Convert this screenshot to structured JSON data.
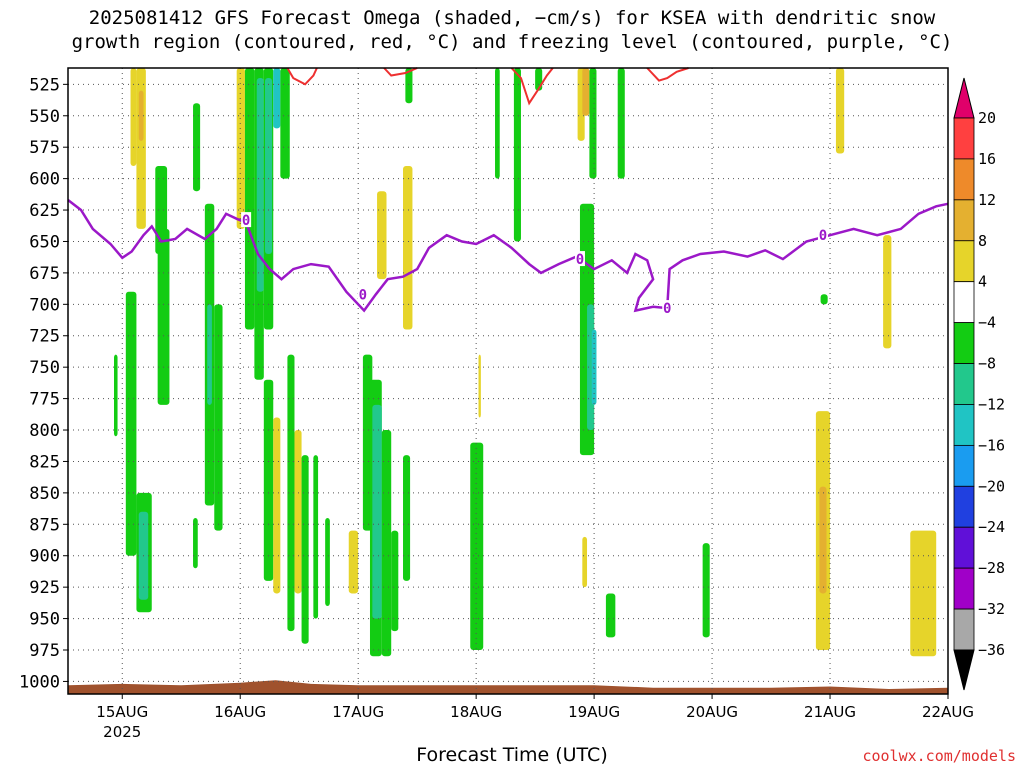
{
  "title_lines": [
    "2025081412 GFS Forecast Omega (shaded, −cm/s) for KSEA with dendritic snow",
    "growth region (contoured, red, °C) and freezing level (contoured, purple, °C)"
  ],
  "xlabel": "Forecast Time (UTC)",
  "credit": "coolwx.com/models",
  "chart_data": {
    "type": "heatmap",
    "title": "2025081412 GFS Forecast Omega (shaded, −cm/s) for KSEA with dendritic snow growth region (contoured, red, °C) and freezing level (contoured, purple, °C)",
    "xlabel": "Forecast Time (UTC)",
    "ylabel": "",
    "y_scale": "pressure",
    "y_ticks": [
      525,
      550,
      575,
      600,
      625,
      650,
      675,
      700,
      725,
      750,
      775,
      800,
      825,
      850,
      875,
      900,
      925,
      950,
      975,
      1000
    ],
    "x_ticks": [
      "15AUG",
      "16AUG",
      "17AUG",
      "18AUG",
      "19AUG",
      "20AUG",
      "21AUG",
      "22AUG"
    ],
    "x_ticks_sub": [
      "2025",
      "",
      "",
      "",
      "",
      "",
      "",
      ""
    ],
    "x_range_days": [
      14.54,
      22.0
    ],
    "y_range": [
      512,
      1010
    ],
    "grid": true,
    "colorbar": {
      "levels": [
        20,
        16,
        12,
        8,
        4,
        -4,
        -8,
        -12,
        -16,
        -20,
        -24,
        -28,
        -32,
        -36
      ],
      "level_labels": [
        "20",
        "16",
        "12",
        "8",
        "4",
        "−4",
        "−8",
        "−12",
        "−16",
        "−20",
        "−24",
        "−28",
        "−32",
        "−36"
      ],
      "colors": [
        "#e0006a",
        "#ff4040",
        "#ee8a2a",
        "#e4b030",
        "#e6d42a",
        "#ffffff",
        "#13cc13",
        "#22c88c",
        "#20c4c4",
        "#1a9cf0",
        "#2040e0",
        "#6010d8",
        "#a000c8",
        "#a8a8a8",
        "#000000"
      ],
      "order": "top-to-bottom"
    },
    "freezing_level": {
      "color": "#9b18c8",
      "label": "0",
      "points": [
        {
          "x": 14.54,
          "y": 617
        },
        {
          "x": 14.65,
          "y": 625
        },
        {
          "x": 14.75,
          "y": 640
        },
        {
          "x": 14.9,
          "y": 652
        },
        {
          "x": 15.0,
          "y": 663
        },
        {
          "x": 15.08,
          "y": 658
        },
        {
          "x": 15.18,
          "y": 645
        },
        {
          "x": 15.25,
          "y": 638
        },
        {
          "x": 15.33,
          "y": 650
        },
        {
          "x": 15.45,
          "y": 648
        },
        {
          "x": 15.55,
          "y": 640
        },
        {
          "x": 15.7,
          "y": 648
        },
        {
          "x": 15.8,
          "y": 640
        },
        {
          "x": 15.88,
          "y": 628
        },
        {
          "x": 15.97,
          "y": 632
        },
        {
          "x": 16.05,
          "y": 635
        },
        {
          "x": 16.15,
          "y": 660
        },
        {
          "x": 16.25,
          "y": 672
        },
        {
          "x": 16.35,
          "y": 680
        },
        {
          "x": 16.45,
          "y": 672
        },
        {
          "x": 16.6,
          "y": 668
        },
        {
          "x": 16.75,
          "y": 670
        },
        {
          "x": 16.9,
          "y": 690
        },
        {
          "x": 17.05,
          "y": 705
        },
        {
          "x": 17.15,
          "y": 692
        },
        {
          "x": 17.25,
          "y": 680
        },
        {
          "x": 17.38,
          "y": 678
        },
        {
          "x": 17.5,
          "y": 672
        },
        {
          "x": 17.6,
          "y": 655
        },
        {
          "x": 17.75,
          "y": 645
        },
        {
          "x": 17.88,
          "y": 650
        },
        {
          "x": 18.0,
          "y": 652
        },
        {
          "x": 18.15,
          "y": 645
        },
        {
          "x": 18.3,
          "y": 655
        },
        {
          "x": 18.45,
          "y": 668
        },
        {
          "x": 18.55,
          "y": 675
        },
        {
          "x": 18.7,
          "y": 668
        },
        {
          "x": 18.85,
          "y": 662
        },
        {
          "x": 19.0,
          "y": 672
        },
        {
          "x": 19.15,
          "y": 665
        },
        {
          "x": 19.28,
          "y": 675
        },
        {
          "x": 19.35,
          "y": 660
        },
        {
          "x": 19.45,
          "y": 665
        },
        {
          "x": 19.5,
          "y": 680
        },
        {
          "x": 19.38,
          "y": 695
        },
        {
          "x": 19.35,
          "y": 705
        },
        {
          "x": 19.5,
          "y": 702
        },
        {
          "x": 19.62,
          "y": 703
        },
        {
          "x": 19.64,
          "y": 672
        },
        {
          "x": 19.75,
          "y": 665
        },
        {
          "x": 19.9,
          "y": 660
        },
        {
          "x": 20.1,
          "y": 658
        },
        {
          "x": 20.3,
          "y": 662
        },
        {
          "x": 20.45,
          "y": 657
        },
        {
          "x": 20.6,
          "y": 664
        },
        {
          "x": 20.8,
          "y": 650
        },
        {
          "x": 21.0,
          "y": 645
        },
        {
          "x": 21.2,
          "y": 640
        },
        {
          "x": 21.4,
          "y": 645
        },
        {
          "x": 21.6,
          "y": 640
        },
        {
          "x": 21.75,
          "y": 628
        },
        {
          "x": 21.9,
          "y": 622
        },
        {
          "x": 22.0,
          "y": 620
        }
      ]
    },
    "freezing_level_labels": [
      {
        "x": 16.05,
        "y": 633
      },
      {
        "x": 17.04,
        "y": 692
      },
      {
        "x": 18.88,
        "y": 664
      },
      {
        "x": 19.62,
        "y": 703
      },
      {
        "x": 20.94,
        "y": 645
      }
    ],
    "dgz_contours": [
      {
        "color": "#ee3030",
        "points": [
          {
            "x": 16.4,
            "y": 512
          },
          {
            "x": 16.45,
            "y": 520
          },
          {
            "x": 16.55,
            "y": 525
          },
          {
            "x": 16.62,
            "y": 518
          },
          {
            "x": 16.65,
            "y": 512
          }
        ]
      },
      {
        "color": "#ee3030",
        "points": [
          {
            "x": 17.22,
            "y": 512
          },
          {
            "x": 17.28,
            "y": 518
          },
          {
            "x": 17.4,
            "y": 516
          },
          {
            "x": 17.5,
            "y": 512
          }
        ]
      },
      {
        "color": "#ee3030",
        "points": [
          {
            "x": 18.3,
            "y": 512
          },
          {
            "x": 18.38,
            "y": 520
          },
          {
            "x": 18.45,
            "y": 540
          },
          {
            "x": 18.52,
            "y": 530
          },
          {
            "x": 18.6,
            "y": 518
          },
          {
            "x": 18.65,
            "y": 512
          }
        ]
      },
      {
        "color": "#ee3030",
        "points": [
          {
            "x": 19.45,
            "y": 512
          },
          {
            "x": 19.55,
            "y": 522
          },
          {
            "x": 19.62,
            "y": 520
          },
          {
            "x": 19.7,
            "y": 515
          },
          {
            "x": 19.8,
            "y": 512
          }
        ]
      }
    ],
    "omega_regions": [
      {
        "x0": 15.07,
        "x1": 15.12,
        "y0": 512,
        "y1": 590,
        "color": "#e6d42a"
      },
      {
        "x0": 15.12,
        "x1": 15.2,
        "y0": 512,
        "y1": 640,
        "color": "#e6d42a"
      },
      {
        "x0": 15.14,
        "x1": 15.18,
        "y0": 530,
        "y1": 570,
        "color": "#e4b030"
      },
      {
        "x0": 14.93,
        "x1": 14.96,
        "y0": 740,
        "y1": 805,
        "color": "#13cc13"
      },
      {
        "x0": 15.03,
        "x1": 15.12,
        "y0": 690,
        "y1": 900,
        "color": "#13cc13"
      },
      {
        "x0": 15.12,
        "x1": 15.25,
        "y0": 850,
        "y1": 945,
        "color": "#13cc13"
      },
      {
        "x0": 15.14,
        "x1": 15.22,
        "y0": 865,
        "y1": 935,
        "color": "#22c88c"
      },
      {
        "x0": 15.28,
        "x1": 15.38,
        "y0": 590,
        "y1": 660,
        "color": "#13cc13"
      },
      {
        "x0": 15.3,
        "x1": 15.4,
        "y0": 640,
        "y1": 780,
        "color": "#13cc13"
      },
      {
        "x0": 15.6,
        "x1": 15.66,
        "y0": 540,
        "y1": 610,
        "color": "#13cc13"
      },
      {
        "x0": 15.7,
        "x1": 15.78,
        "y0": 620,
        "y1": 860,
        "color": "#13cc13"
      },
      {
        "x0": 15.72,
        "x1": 15.76,
        "y0": 700,
        "y1": 780,
        "color": "#22c88c"
      },
      {
        "x0": 15.78,
        "x1": 15.85,
        "y0": 700,
        "y1": 880,
        "color": "#13cc13"
      },
      {
        "x0": 15.6,
        "x1": 15.64,
        "y0": 870,
        "y1": 910,
        "color": "#13cc13"
      },
      {
        "x0": 15.97,
        "x1": 16.04,
        "y0": 512,
        "y1": 640,
        "color": "#e6d42a"
      },
      {
        "x0": 16.04,
        "x1": 16.12,
        "y0": 512,
        "y1": 720,
        "color": "#13cc13"
      },
      {
        "x0": 16.12,
        "x1": 16.2,
        "y0": 512,
        "y1": 760,
        "color": "#13cc13"
      },
      {
        "x0": 16.14,
        "x1": 16.2,
        "y0": 520,
        "y1": 690,
        "color": "#22c88c"
      },
      {
        "x0": 16.2,
        "x1": 16.28,
        "y0": 512,
        "y1": 720,
        "color": "#13cc13"
      },
      {
        "x0": 16.21,
        "x1": 16.27,
        "y0": 520,
        "y1": 660,
        "color": "#22c88c"
      },
      {
        "x0": 16.28,
        "x1": 16.34,
        "y0": 512,
        "y1": 560,
        "color": "#20c4c4"
      },
      {
        "x0": 16.34,
        "x1": 16.42,
        "y0": 512,
        "y1": 600,
        "color": "#13cc13"
      },
      {
        "x0": 16.2,
        "x1": 16.28,
        "y0": 760,
        "y1": 920,
        "color": "#13cc13"
      },
      {
        "x0": 16.28,
        "x1": 16.34,
        "y0": 790,
        "y1": 930,
        "color": "#e6d42a"
      },
      {
        "x0": 16.4,
        "x1": 16.46,
        "y0": 740,
        "y1": 960,
        "color": "#13cc13"
      },
      {
        "x0": 16.46,
        "x1": 16.52,
        "y0": 800,
        "y1": 930,
        "color": "#e6d42a"
      },
      {
        "x0": 16.52,
        "x1": 16.58,
        "y0": 820,
        "y1": 970,
        "color": "#13cc13"
      },
      {
        "x0": 16.62,
        "x1": 16.66,
        "y0": 820,
        "y1": 950,
        "color": "#13cc13"
      },
      {
        "x0": 16.72,
        "x1": 16.76,
        "y0": 870,
        "y1": 940,
        "color": "#13cc13"
      },
      {
        "x0": 16.92,
        "x1": 17.0,
        "y0": 880,
        "y1": 930,
        "color": "#e6d42a"
      },
      {
        "x0": 17.04,
        "x1": 17.12,
        "y0": 740,
        "y1": 880,
        "color": "#13cc13"
      },
      {
        "x0": 17.1,
        "x1": 17.2,
        "y0": 760,
        "y1": 980,
        "color": "#13cc13"
      },
      {
        "x0": 17.12,
        "x1": 17.2,
        "y0": 780,
        "y1": 950,
        "color": "#22c88c"
      },
      {
        "x0": 17.2,
        "x1": 17.28,
        "y0": 800,
        "y1": 980,
        "color": "#13cc13"
      },
      {
        "x0": 17.28,
        "x1": 17.34,
        "y0": 880,
        "y1": 960,
        "color": "#13cc13"
      },
      {
        "x0": 17.38,
        "x1": 17.44,
        "y0": 820,
        "y1": 920,
        "color": "#13cc13"
      },
      {
        "x0": 17.16,
        "x1": 17.24,
        "y0": 610,
        "y1": 680,
        "color": "#e6d42a"
      },
      {
        "x0": 17.38,
        "x1": 17.46,
        "y0": 590,
        "y1": 720,
        "color": "#e6d42a"
      },
      {
        "x0": 17.4,
        "x1": 17.46,
        "y0": 512,
        "y1": 540,
        "color": "#13cc13"
      },
      {
        "x0": 17.95,
        "x1": 18.06,
        "y0": 810,
        "y1": 975,
        "color": "#13cc13"
      },
      {
        "x0": 18.02,
        "x1": 18.04,
        "y0": 740,
        "y1": 790,
        "color": "#e6d42a"
      },
      {
        "x0": 18.16,
        "x1": 18.2,
        "y0": 512,
        "y1": 600,
        "color": "#13cc13"
      },
      {
        "x0": 18.32,
        "x1": 18.38,
        "y0": 512,
        "y1": 650,
        "color": "#13cc13"
      },
      {
        "x0": 18.5,
        "x1": 18.56,
        "y0": 512,
        "y1": 530,
        "color": "#13cc13"
      },
      {
        "x0": 18.86,
        "x1": 18.92,
        "y0": 512,
        "y1": 570,
        "color": "#e6d42a"
      },
      {
        "x0": 18.9,
        "x1": 18.96,
        "y0": 512,
        "y1": 550,
        "color": "#e4b030"
      },
      {
        "x0": 18.96,
        "x1": 19.02,
        "y0": 512,
        "y1": 600,
        "color": "#13cc13"
      },
      {
        "x0": 18.88,
        "x1": 19.0,
        "y0": 620,
        "y1": 820,
        "color": "#13cc13"
      },
      {
        "x0": 18.94,
        "x1": 19.0,
        "y0": 700,
        "y1": 800,
        "color": "#22c88c"
      },
      {
        "x0": 18.98,
        "x1": 19.02,
        "y0": 720,
        "y1": 780,
        "color": "#20c4c4"
      },
      {
        "x0": 19.2,
        "x1": 19.26,
        "y0": 512,
        "y1": 600,
        "color": "#13cc13"
      },
      {
        "x0": 18.9,
        "x1": 18.94,
        "y0": 885,
        "y1": 925,
        "color": "#e6d42a"
      },
      {
        "x0": 19.1,
        "x1": 19.18,
        "y0": 930,
        "y1": 965,
        "color": "#13cc13"
      },
      {
        "x0": 19.92,
        "x1": 19.98,
        "y0": 890,
        "y1": 965,
        "color": "#13cc13"
      },
      {
        "x0": 20.92,
        "x1": 20.98,
        "y0": 692,
        "y1": 700,
        "color": "#13cc13"
      },
      {
        "x0": 20.88,
        "x1": 21.0,
        "y0": 785,
        "y1": 975,
        "color": "#e6d42a"
      },
      {
        "x0": 20.91,
        "x1": 20.97,
        "y0": 845,
        "y1": 930,
        "color": "#e4b030"
      },
      {
        "x0": 21.05,
        "x1": 21.12,
        "y0": 512,
        "y1": 580,
        "color": "#e6d42a"
      },
      {
        "x0": 21.45,
        "x1": 21.52,
        "y0": 645,
        "y1": 735,
        "color": "#e6d42a"
      },
      {
        "x0": 21.68,
        "x1": 21.9,
        "y0": 880,
        "y1": 980,
        "color": "#e6d42a"
      }
    ],
    "ground": {
      "color": "#a0522d",
      "points": [
        {
          "x": 14.54,
          "y": 1003
        },
        {
          "x": 15.0,
          "y": 1002
        },
        {
          "x": 15.5,
          "y": 1003
        },
        {
          "x": 16.0,
          "y": 1001
        },
        {
          "x": 16.3,
          "y": 999
        },
        {
          "x": 16.6,
          "y": 1002
        },
        {
          "x": 17.0,
          "y": 1003
        },
        {
          "x": 17.5,
          "y": 1003
        },
        {
          "x": 18.0,
          "y": 1003
        },
        {
          "x": 18.5,
          "y": 1003
        },
        {
          "x": 19.0,
          "y": 1003
        },
        {
          "x": 19.5,
          "y": 1005
        },
        {
          "x": 20.0,
          "y": 1005
        },
        {
          "x": 20.5,
          "y": 1005
        },
        {
          "x": 21.0,
          "y": 1004
        },
        {
          "x": 21.5,
          "y": 1006
        },
        {
          "x": 22.0,
          "y": 1005
        }
      ]
    }
  }
}
